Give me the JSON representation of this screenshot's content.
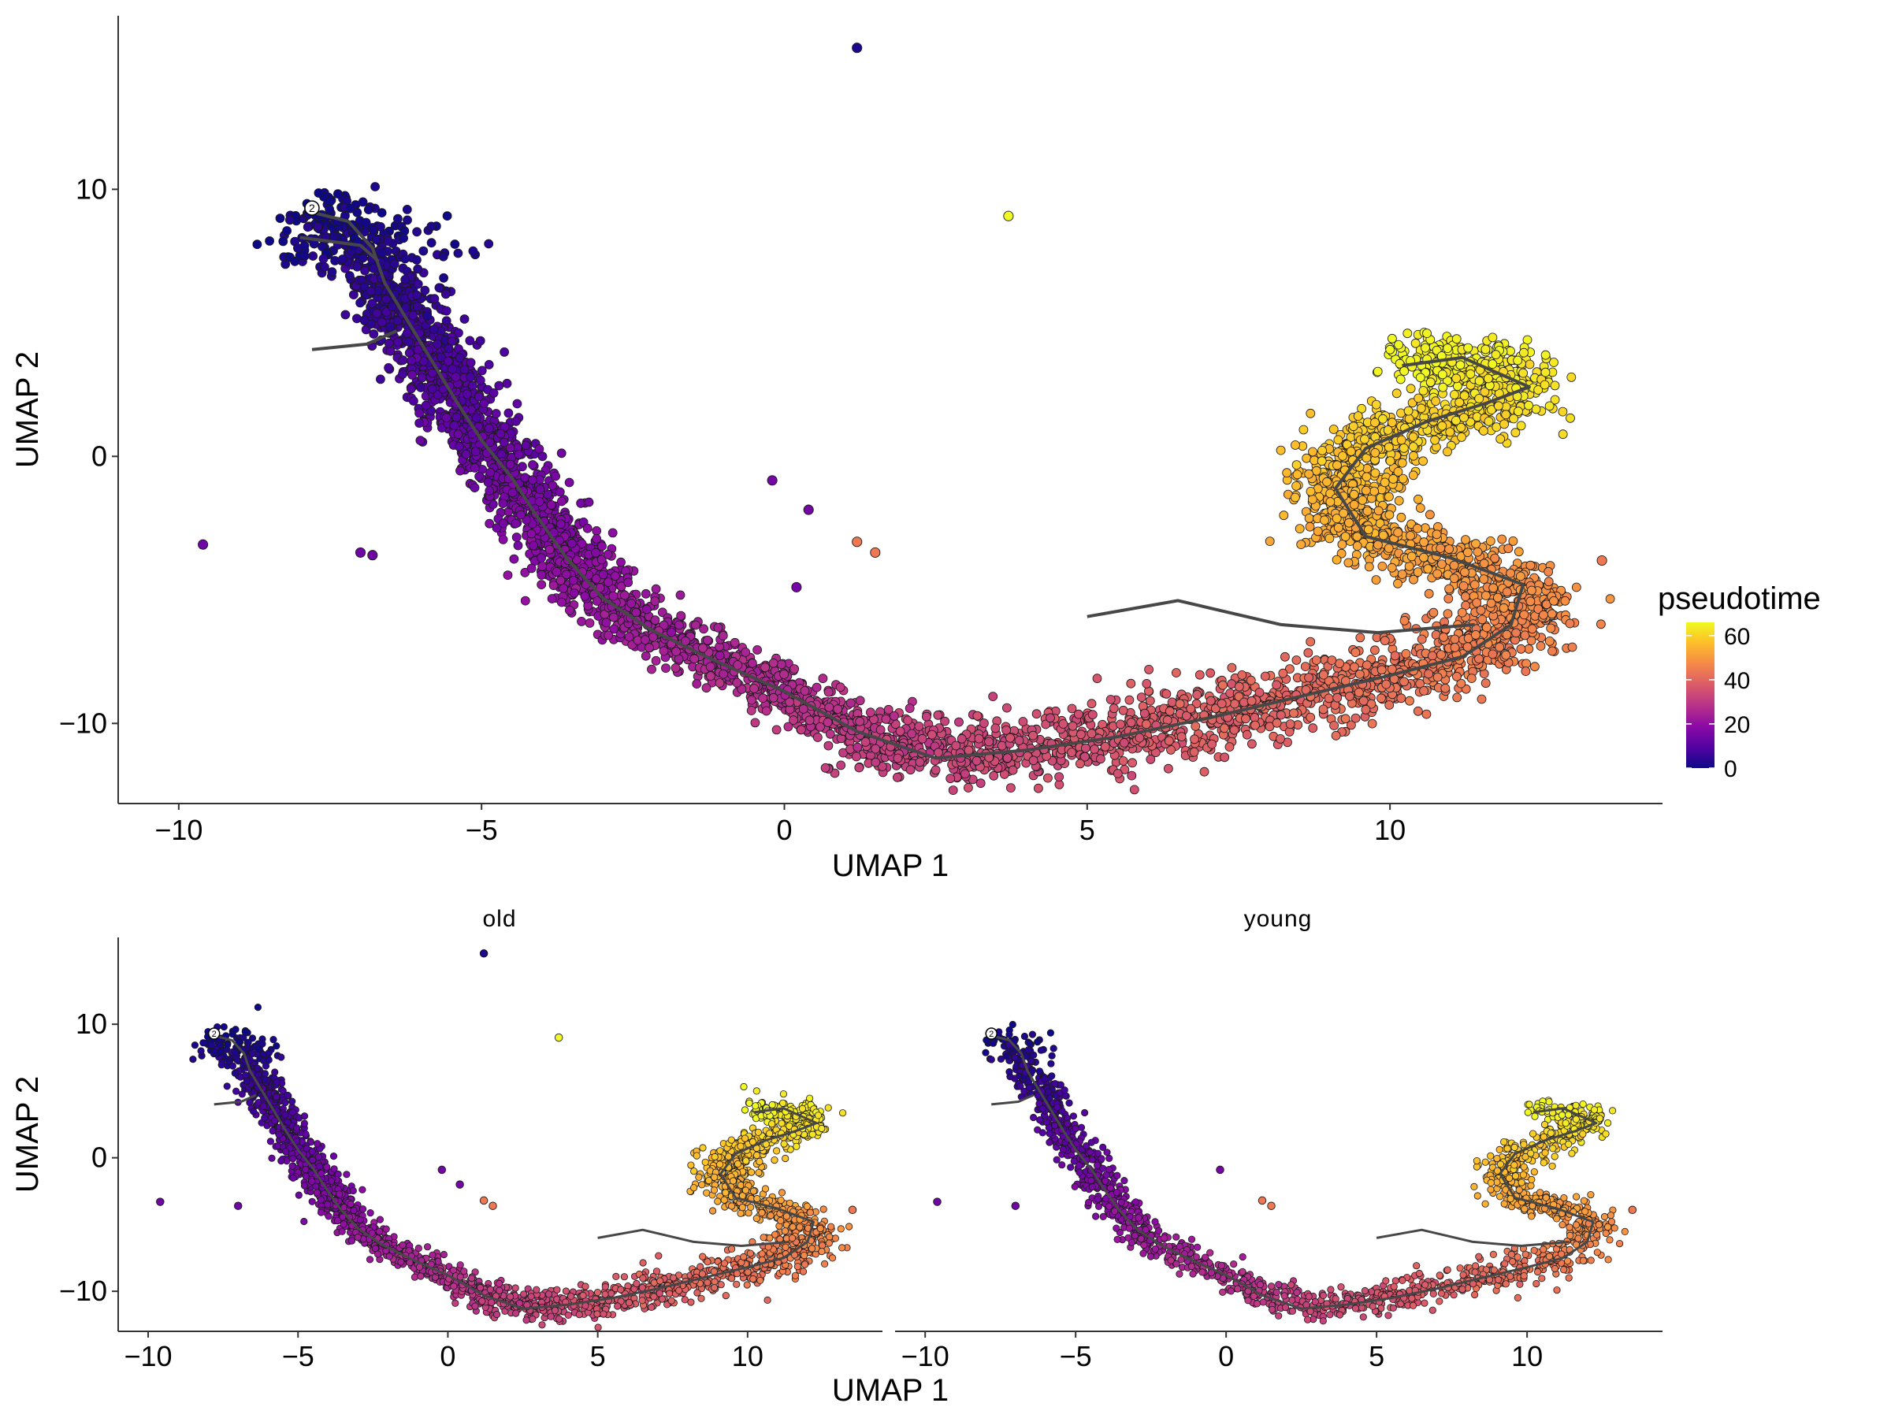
{
  "colors": {
    "palette": "plasma",
    "stops": [
      "#0d0887",
      "#5302a3",
      "#8b0aa5",
      "#b83289",
      "#db5c68",
      "#f48849",
      "#febd2a",
      "#f0f921"
    ],
    "trajectory": "#474747",
    "point_outline": "#1a1a1a",
    "axis": "#333333"
  },
  "legend": {
    "title": "pseudotime",
    "ticks": [
      "60",
      "40",
      "20",
      "0"
    ],
    "tick_values": [
      60,
      40,
      20,
      0
    ],
    "range": [
      0,
      66
    ],
    "position": "right"
  },
  "root_node_label": "2",
  "chart_data": [
    {
      "type": "scatter",
      "panel": "main",
      "title": "",
      "xlabel": "UMAP 1",
      "ylabel": "UMAP 2",
      "xlim": [
        -11,
        14.5
      ],
      "ylim": [
        -13,
        16.5
      ],
      "xticks": [
        "-10",
        "-5",
        "0",
        "5",
        "10"
      ],
      "yticks": [
        "10",
        "0",
        "-10"
      ],
      "grid": false,
      "color_by": "pseudotime",
      "root_node": {
        "label": "2",
        "x": -7.8,
        "y": 9.3
      },
      "trajectory": [
        [
          -7.9,
          9.2
        ],
        [
          -7.2,
          8.8
        ],
        [
          -6.8,
          7.8
        ],
        [
          -6.6,
          6.5
        ],
        [
          -6.2,
          5.0
        ],
        [
          -5.8,
          3.5
        ],
        [
          -5.4,
          2.0
        ],
        [
          -5.0,
          0.6
        ],
        [
          -4.5,
          -0.8
        ],
        [
          -4.1,
          -2.2
        ],
        [
          -3.6,
          -3.8
        ],
        [
          -3.0,
          -5.3
        ],
        [
          -2.2,
          -6.5
        ],
        [
          -1.2,
          -7.6
        ],
        [
          0.0,
          -8.8
        ],
        [
          1.2,
          -10.3
        ],
        [
          2.5,
          -11.3
        ],
        [
          4.0,
          -11.0
        ],
        [
          5.5,
          -10.5
        ],
        [
          7.0,
          -9.8
        ],
        [
          8.5,
          -9.0
        ],
        [
          10.0,
          -8.2
        ],
        [
          11.2,
          -7.5
        ],
        [
          12.0,
          -6.3
        ],
        [
          12.2,
          -4.8
        ],
        [
          11.0,
          -3.8
        ],
        [
          9.6,
          -3.0
        ],
        [
          9.1,
          -1.2
        ],
        [
          9.6,
          0.3
        ],
        [
          10.6,
          1.3
        ],
        [
          11.6,
          2.0
        ],
        [
          12.3,
          2.6
        ],
        [
          11.2,
          3.7
        ],
        [
          10.2,
          3.4
        ]
      ],
      "trajectory_branches": [
        [
          [
            -7.8,
            4.0
          ],
          [
            -6.9,
            4.2
          ],
          [
            -6.4,
            4.7
          ]
        ],
        [
          [
            -8.0,
            8.2
          ],
          [
            -7.0,
            7.9
          ],
          [
            -6.7,
            7.3
          ]
        ],
        [
          [
            5.0,
            -6.0
          ],
          [
            6.5,
            -5.4
          ],
          [
            8.2,
            -6.3
          ],
          [
            9.8,
            -6.6
          ],
          [
            11.4,
            -6.3
          ]
        ]
      ],
      "outliers": [
        {
          "x": 1.2,
          "y": 15.3,
          "pseudotime": 2
        },
        {
          "x": 3.7,
          "y": 9.0,
          "pseudotime": 66
        },
        {
          "x": -9.6,
          "y": -3.3,
          "pseudotime": 14
        },
        {
          "x": -7.0,
          "y": -3.6,
          "pseudotime": 14
        },
        {
          "x": -6.8,
          "y": -3.7,
          "pseudotime": 14
        },
        {
          "x": -0.2,
          "y": -0.9,
          "pseudotime": 15
        },
        {
          "x": 0.4,
          "y": -2.0,
          "pseudotime": 15
        },
        {
          "x": 0.2,
          "y": -4.9,
          "pseudotime": 15
        },
        {
          "x": 1.2,
          "y": -3.2,
          "pseudotime": 44
        },
        {
          "x": 1.5,
          "y": -3.6,
          "pseudotime": 44
        },
        {
          "x": 13.5,
          "y": -3.9,
          "pseudotime": 44
        }
      ]
    },
    {
      "type": "scatter",
      "panel": "facet",
      "title": "old",
      "xlabel": "UMAP 1",
      "ylabel": "UMAP 2",
      "xlim": [
        -11,
        14.5
      ],
      "ylim": [
        -13,
        16.5
      ],
      "xticks": [
        "-10",
        "-5",
        "0",
        "5",
        "10"
      ],
      "yticks": [
        "10",
        "0",
        "-10"
      ],
      "grid": false,
      "color_by": "pseudotime",
      "root_node": {
        "label": "2",
        "x": -7.8,
        "y": 9.3
      },
      "trajectory": [
        [
          -7.9,
          9.2
        ],
        [
          -7.2,
          8.8
        ],
        [
          -6.8,
          7.8
        ],
        [
          -6.6,
          6.5
        ],
        [
          -6.2,
          5.0
        ],
        [
          -5.8,
          3.5
        ],
        [
          -5.4,
          2.0
        ],
        [
          -5.0,
          0.6
        ],
        [
          -4.5,
          -0.8
        ],
        [
          -4.1,
          -2.2
        ],
        [
          -3.6,
          -3.8
        ],
        [
          -3.0,
          -5.3
        ],
        [
          -2.2,
          -6.5
        ],
        [
          -1.2,
          -7.6
        ],
        [
          0.0,
          -8.8
        ],
        [
          1.2,
          -10.3
        ],
        [
          2.5,
          -11.3
        ],
        [
          4.0,
          -11.0
        ],
        [
          5.5,
          -10.5
        ],
        [
          7.0,
          -9.8
        ],
        [
          8.5,
          -9.0
        ],
        [
          10.0,
          -8.2
        ],
        [
          11.2,
          -7.5
        ],
        [
          12.0,
          -6.3
        ],
        [
          12.2,
          -4.8
        ],
        [
          11.0,
          -3.8
        ],
        [
          9.6,
          -3.0
        ],
        [
          9.1,
          -1.2
        ],
        [
          9.6,
          0.3
        ],
        [
          10.6,
          1.3
        ],
        [
          11.6,
          2.0
        ],
        [
          12.3,
          2.6
        ],
        [
          11.2,
          3.7
        ],
        [
          10.2,
          3.4
        ]
      ],
      "trajectory_branches": [
        [
          [
            -7.8,
            4.0
          ],
          [
            -6.9,
            4.2
          ],
          [
            -6.4,
            4.7
          ]
        ],
        [
          [
            5.0,
            -6.0
          ],
          [
            6.5,
            -5.4
          ],
          [
            8.2,
            -6.3
          ],
          [
            9.8,
            -6.6
          ],
          [
            11.4,
            -6.3
          ]
        ]
      ],
      "outliers": [
        {
          "x": 1.2,
          "y": 15.3,
          "pseudotime": 2
        },
        {
          "x": 3.7,
          "y": 9.0,
          "pseudotime": 66
        },
        {
          "x": -9.6,
          "y": -3.3,
          "pseudotime": 14
        },
        {
          "x": -7.0,
          "y": -3.6,
          "pseudotime": 14
        },
        {
          "x": -0.2,
          "y": -0.9,
          "pseudotime": 15
        },
        {
          "x": 0.4,
          "y": -2.0,
          "pseudotime": 15
        },
        {
          "x": 1.2,
          "y": -3.2,
          "pseudotime": 44
        },
        {
          "x": 1.5,
          "y": -3.6,
          "pseudotime": 44
        },
        {
          "x": 13.5,
          "y": -3.9,
          "pseudotime": 44
        }
      ]
    },
    {
      "type": "scatter",
      "panel": "facet",
      "title": "young",
      "xlabel": "UMAP 1",
      "ylabel": "UMAP 2",
      "xlim": [
        -11,
        14.5
      ],
      "ylim": [
        -13,
        16.5
      ],
      "xticks": [
        "-10",
        "-5",
        "0",
        "5",
        "10"
      ],
      "yticks": [
        "10",
        "0",
        "-10"
      ],
      "grid": false,
      "color_by": "pseudotime",
      "root_node": {
        "label": "2",
        "x": -7.8,
        "y": 9.3
      },
      "trajectory": [
        [
          -7.9,
          9.2
        ],
        [
          -7.2,
          8.8
        ],
        [
          -6.8,
          7.8
        ],
        [
          -6.6,
          6.5
        ],
        [
          -6.2,
          5.0
        ],
        [
          -5.8,
          3.5
        ],
        [
          -5.4,
          2.0
        ],
        [
          -5.0,
          0.6
        ],
        [
          -4.5,
          -0.8
        ],
        [
          -4.1,
          -2.2
        ],
        [
          -3.6,
          -3.8
        ],
        [
          -3.0,
          -5.3
        ],
        [
          -2.2,
          -6.5
        ],
        [
          -1.2,
          -7.6
        ],
        [
          0.0,
          -8.8
        ],
        [
          1.2,
          -10.3
        ],
        [
          2.5,
          -11.3
        ],
        [
          4.0,
          -11.0
        ],
        [
          5.5,
          -10.5
        ],
        [
          7.0,
          -9.8
        ],
        [
          8.5,
          -9.0
        ],
        [
          10.0,
          -8.2
        ],
        [
          11.2,
          -7.5
        ],
        [
          12.0,
          -6.3
        ],
        [
          12.2,
          -4.8
        ],
        [
          11.0,
          -3.8
        ],
        [
          9.6,
          -3.0
        ],
        [
          9.1,
          -1.2
        ],
        [
          9.6,
          0.3
        ],
        [
          10.6,
          1.3
        ],
        [
          11.6,
          2.0
        ],
        [
          12.3,
          2.6
        ],
        [
          11.2,
          3.7
        ],
        [
          10.2,
          3.4
        ]
      ],
      "trajectory_branches": [
        [
          [
            -7.8,
            4.0
          ],
          [
            -6.9,
            4.2
          ],
          [
            -6.4,
            4.7
          ]
        ],
        [
          [
            5.0,
            -6.0
          ],
          [
            6.5,
            -5.4
          ],
          [
            8.2,
            -6.3
          ],
          [
            9.8,
            -6.6
          ],
          [
            11.4,
            -6.3
          ]
        ]
      ],
      "outliers": [
        {
          "x": -9.6,
          "y": -3.3,
          "pseudotime": 14
        },
        {
          "x": -7.0,
          "y": -3.6,
          "pseudotime": 14
        },
        {
          "x": -0.2,
          "y": -0.9,
          "pseudotime": 15
        },
        {
          "x": 1.2,
          "y": -3.2,
          "pseudotime": 44
        },
        {
          "x": 1.5,
          "y": -3.6,
          "pseudotime": 44
        },
        {
          "x": 13.5,
          "y": -3.9,
          "pseudotime": 44
        }
      ]
    }
  ]
}
